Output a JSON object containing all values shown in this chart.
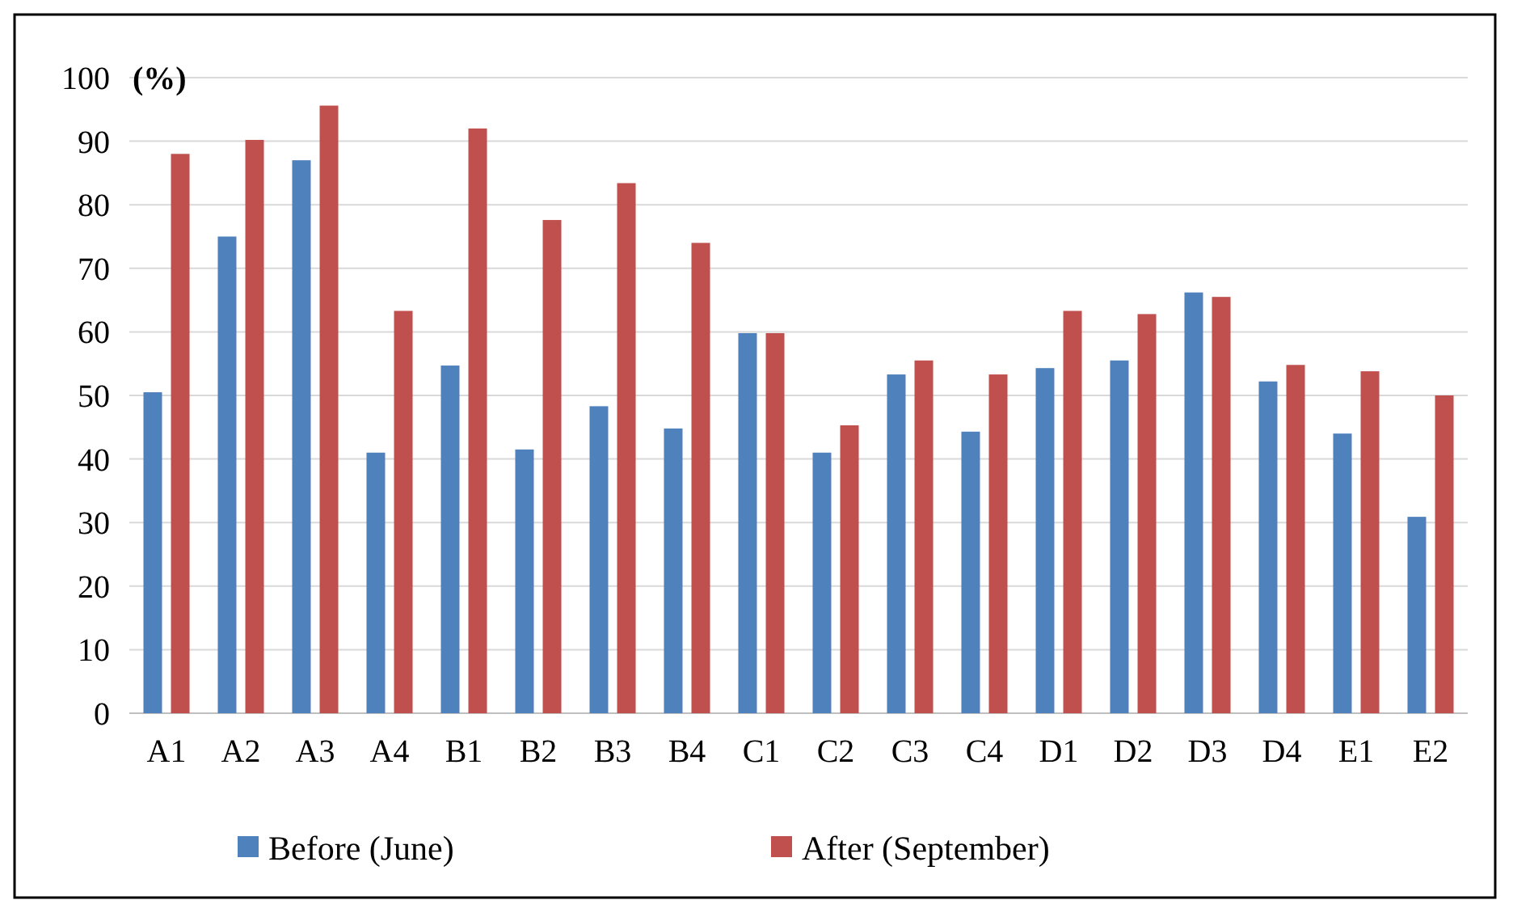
{
  "chart_data": {
    "type": "bar",
    "ylabel": "(%)",
    "categories": [
      "A1",
      "A2",
      "A3",
      "A4",
      "B1",
      "B2",
      "B3",
      "B4",
      "C1",
      "C2",
      "C3",
      "C4",
      "D1",
      "D2",
      "D3",
      "D4",
      "E1",
      "E2"
    ],
    "series": [
      {
        "name": "Before (June)",
        "color": "#4f81bd",
        "values": [
          50.5,
          75,
          87,
          41,
          54.7,
          41.5,
          48.3,
          44.8,
          59.8,
          41,
          53.3,
          44.3,
          54.3,
          55.5,
          66.2,
          52.2,
          44,
          30.9
        ]
      },
      {
        "name": "After (September)",
        "color": "#c0504d",
        "values": [
          88,
          90.2,
          95.6,
          63.3,
          92,
          77.6,
          83.4,
          74,
          59.8,
          45.3,
          55.5,
          53.3,
          63.3,
          62.8,
          65.5,
          54.8,
          53.8,
          50
        ]
      }
    ],
    "ylim": [
      0,
      100
    ],
    "yticks": [
      0,
      10,
      20,
      30,
      40,
      50,
      60,
      70,
      80,
      90,
      100
    ],
    "grid": "y",
    "legend": "bottom"
  }
}
